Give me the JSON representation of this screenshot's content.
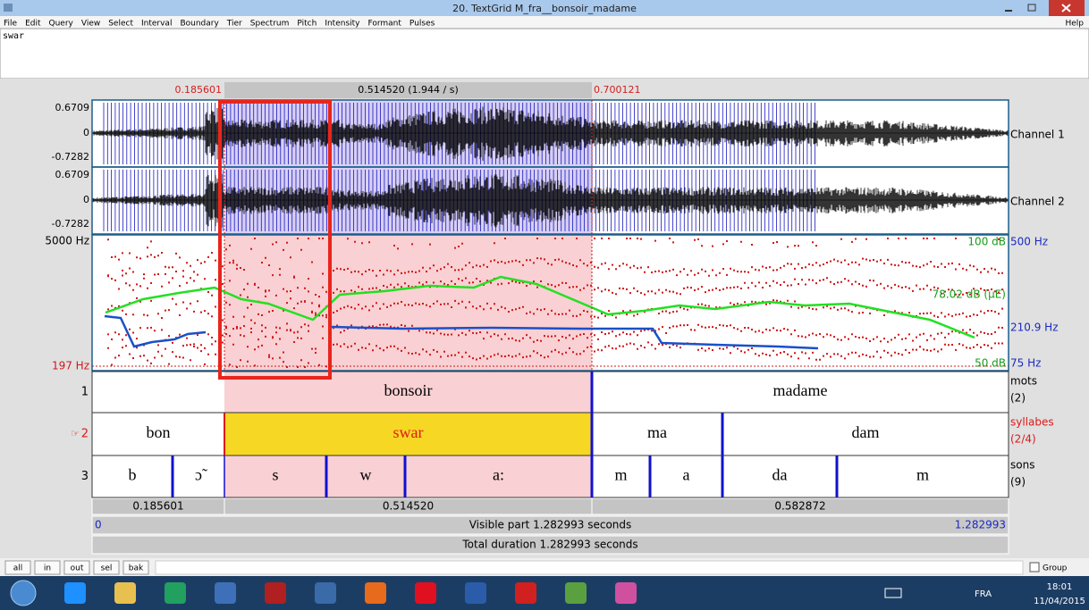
{
  "window": {
    "title": "20. TextGrid M_fra__bonsoir_madame"
  },
  "menu": [
    "File",
    "Edit",
    "Query",
    "View",
    "Select",
    "Interval",
    "Boundary",
    "Tier",
    "Spectrum",
    "Pitch",
    "Intensity",
    "Formant",
    "Pulses"
  ],
  "help": "Help",
  "text_field": "swar",
  "selection": {
    "start": "0.185601",
    "duration": "0.514520 (1.944 / s)",
    "end": "0.700121"
  },
  "waveform": {
    "channels": [
      {
        "max": "0.6709",
        "zero": "0",
        "min": "-0.7282",
        "name": "Channel 1"
      },
      {
        "max": "0.6709",
        "zero": "0",
        "min": "-0.7282",
        "name": "Channel 2"
      }
    ]
  },
  "analysis": {
    "freq_max": "5000 Hz",
    "freq_min": "197 Hz",
    "intensity_max": "100 dB",
    "intensity_value": "78.02 dB (μE)",
    "intensity_min": "50 dB",
    "pitch_max": "500 Hz",
    "pitch_value": "210.9 Hz",
    "pitch_min": "75 Hz"
  },
  "tiers": [
    {
      "number": "1",
      "name": "mots",
      "count": "(2)",
      "intervals": [
        "bonsoir",
        "madame"
      ]
    },
    {
      "marker": "☞",
      "number": "2",
      "name": "syllabes",
      "count": "(2/4)",
      "intervals": [
        "bon",
        "swar",
        "ma",
        "dam"
      ]
    },
    {
      "number": "3",
      "name": "sons",
      "count": "(9)",
      "intervals": [
        "b",
        "ɔ̃",
        "s",
        "w",
        "a:",
        "m",
        "a",
        "da",
        "m"
      ]
    }
  ],
  "durations": [
    "0.185601",
    "0.514520",
    "0.582872"
  ],
  "visible": {
    "start": "0",
    "label": "Visible part 1.282993 seconds",
    "end": "1.282993"
  },
  "total": "Total duration 1.282993 seconds",
  "buttons": [
    "all",
    "in",
    "out",
    "sel",
    "bak"
  ],
  "group": "Group",
  "taskbar": {
    "language": "FRA",
    "time": "18:01",
    "date": "11/04/2015"
  }
}
